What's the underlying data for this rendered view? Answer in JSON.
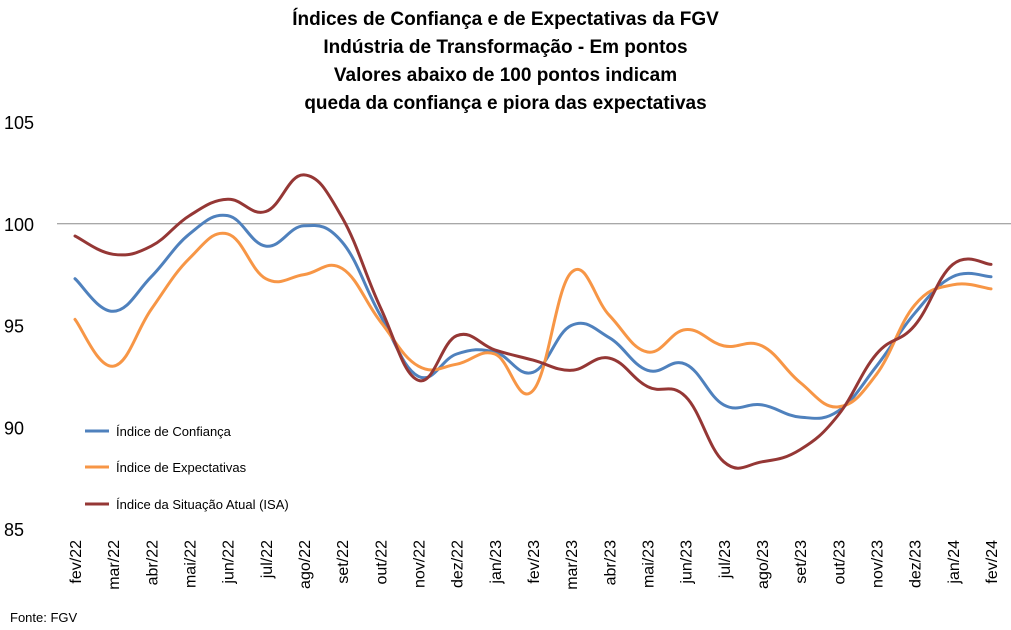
{
  "title_lines": [
    "Índices de Confiança e de Expectativas da FGV",
    "Indústria de Transformação - Em pontos",
    "Valores abaixo de 100 pontos indicam",
    "queda da confiança e piora das expectativas"
  ],
  "source": "Fonte: FGV",
  "chart_data": {
    "type": "line",
    "x": [
      "fev/22",
      "mar/22",
      "abr/22",
      "mai/22",
      "jun/22",
      "jul/22",
      "ago/22",
      "set/22",
      "out/22",
      "nov/22",
      "dez/22",
      "jan/23",
      "fev/23",
      "mar/23",
      "abr/23",
      "mai/23",
      "jun/23",
      "jul/23",
      "ago/23",
      "set/23",
      "out/23",
      "nov/23",
      "dez/23",
      "jan/24",
      "fev/24"
    ],
    "ylim": [
      85,
      105
    ],
    "yticks": [
      85,
      90,
      95,
      100,
      105
    ],
    "reference_line": 100,
    "grid": false,
    "legend_position": "left",
    "series": [
      {
        "name": "Índice de Confiança",
        "color": "#4F81BD",
        "values": [
          97.3,
          95.7,
          97.4,
          99.5,
          100.4,
          98.9,
          99.9,
          99.1,
          95.5,
          92.5,
          93.6,
          93.7,
          92.7,
          95.0,
          94.4,
          92.8,
          93.1,
          91.1,
          91.1,
          90.5,
          90.8,
          93.0,
          95.6,
          97.4,
          97.4
        ]
      },
      {
        "name": "Índice de Expectativas",
        "color": "#F79646",
        "values": [
          95.3,
          93.0,
          95.8,
          98.3,
          99.5,
          97.3,
          97.5,
          97.8,
          95.2,
          93.0,
          93.1,
          93.6,
          91.8,
          97.6,
          95.5,
          93.7,
          94.8,
          94.0,
          94.0,
          92.2,
          91.0,
          92.6,
          96.0,
          97.0,
          96.8
        ]
      },
      {
        "name": "Índice da Situação Atual (ISA)",
        "color": "#953735",
        "values": [
          99.4,
          98.5,
          98.9,
          100.4,
          101.2,
          100.6,
          102.4,
          100.3,
          95.9,
          92.3,
          94.5,
          93.8,
          93.3,
          92.8,
          93.4,
          92.0,
          91.5,
          88.3,
          88.3,
          88.9,
          90.6,
          93.6,
          95.0,
          98.0,
          98.0
        ]
      }
    ]
  }
}
